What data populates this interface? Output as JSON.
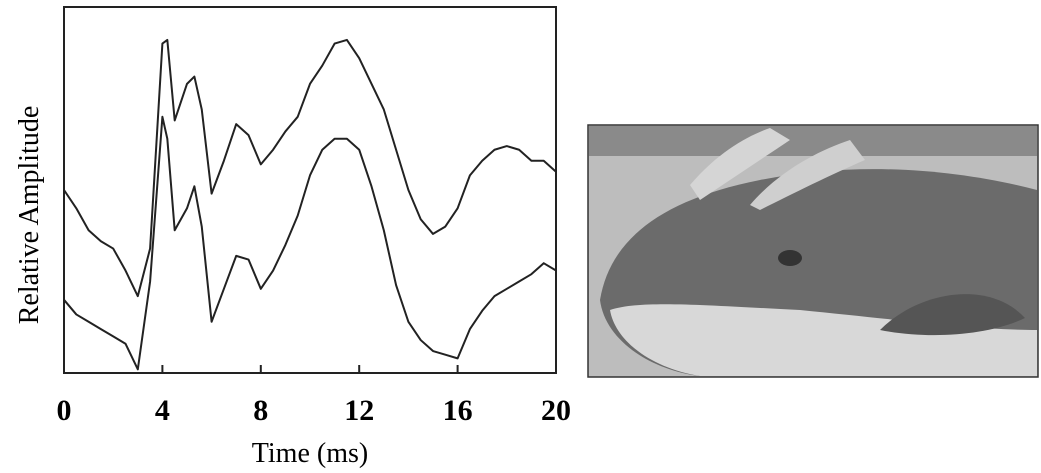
{
  "chart_data": {
    "type": "line",
    "x_label": "Time (ms)",
    "y_label": "Relative Amplitude",
    "x": [
      0,
      0.5,
      1,
      1.5,
      2,
      2.5,
      3,
      3.5,
      4,
      4.2,
      4.5,
      5,
      5.3,
      5.6,
      6,
      6.5,
      7,
      7.5,
      8,
      8.5,
      9,
      9.5,
      10,
      10.5,
      11,
      11.5,
      12,
      12.5,
      13,
      13.5,
      14,
      14.5,
      15,
      15.5,
      16,
      16.5,
      17,
      17.5,
      18,
      18.5,
      19,
      19.5,
      20
    ],
    "series": [
      {
        "color": "#222222",
        "values": [
          50,
          45,
          39,
          36,
          34,
          28,
          21,
          34,
          90,
          91,
          69,
          79,
          81,
          72,
          49,
          58,
          68,
          65,
          57,
          61,
          66,
          70,
          79,
          84,
          90,
          91,
          86,
          79,
          72,
          61,
          50,
          42,
          38,
          40,
          45,
          54,
          58,
          61,
          62,
          61,
          58,
          58,
          55
        ]
      },
      {
        "color": "#222222",
        "values": [
          20,
          16,
          14,
          12,
          10,
          8,
          1,
          25,
          70,
          64,
          39,
          45,
          51,
          40,
          14,
          23,
          32,
          31,
          23,
          28,
          35,
          43,
          54,
          61,
          64,
          64,
          61,
          51,
          39,
          24,
          14,
          9,
          6,
          5,
          4,
          12,
          17,
          21,
          23,
          25,
          27,
          30,
          28
        ]
      }
    ],
    "xlim": [
      0,
      20
    ],
    "xticks": [
      0,
      4,
      8,
      12,
      16,
      20
    ],
    "ylim": [
      0,
      100
    ]
  }
}
